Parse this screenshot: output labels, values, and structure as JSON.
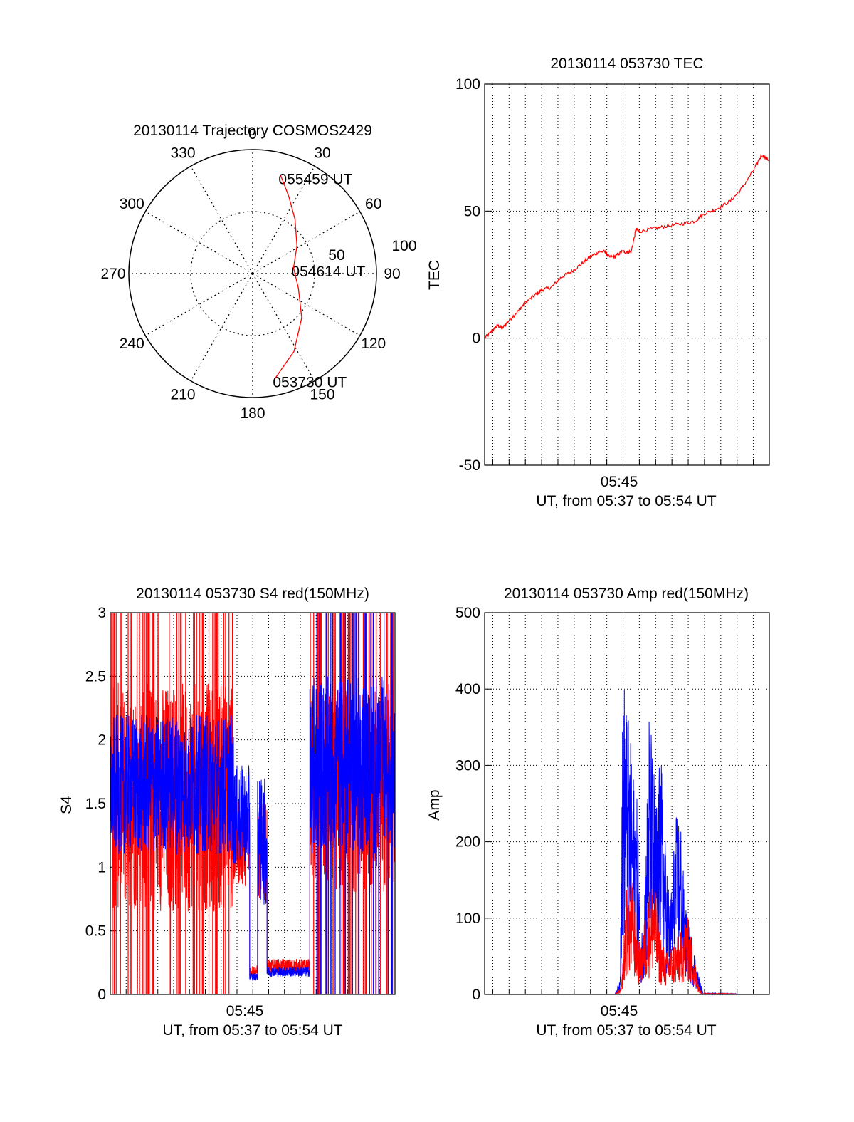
{
  "colors": {
    "red": "#ff0000",
    "blue": "#0000ff",
    "axis": "#000000",
    "grid": "#000000"
  },
  "chart_data": [
    {
      "type": "polar",
      "title": "20130114 Trajectory COSMOS2429",
      "azimuth_ticks": [
        "0",
        "30",
        "60",
        "90",
        "120",
        "150",
        "180",
        "210",
        "240",
        "270",
        "300",
        "330"
      ],
      "radius_labels": [
        "50",
        "100"
      ],
      "trajectory_label_points": [
        {
          "label": "055459 UT",
          "az": 16,
          "el": 16
        },
        {
          "label": "054614 UT",
          "az": 82,
          "el": 60
        },
        {
          "label": "053730 UT",
          "az": 168,
          "el": 12
        }
      ],
      "trajectory": [
        {
          "az": 16,
          "el": 16
        },
        {
          "az": 25,
          "el": 28
        },
        {
          "az": 38,
          "el": 40
        },
        {
          "az": 58,
          "el": 52
        },
        {
          "az": 82,
          "el": 60
        },
        {
          "az": 108,
          "el": 55
        },
        {
          "az": 132,
          "el": 42
        },
        {
          "az": 152,
          "el": 26
        },
        {
          "az": 168,
          "el": 12
        }
      ],
      "series_color": "red"
    },
    {
      "type": "line",
      "title": "20130114 053730 TEC",
      "ylabel": "TEC",
      "xlabel": "UT, from 05:37 to 05:54 UT",
      "x_tick_label": "05:45",
      "ylim": [
        -50,
        100
      ],
      "yticks": [
        -50,
        0,
        50,
        100
      ],
      "xlim_minutes": [
        37.5,
        54.98
      ],
      "grid": true,
      "series": [
        {
          "color": "red",
          "points": [
            [
              37.5,
              0
            ],
            [
              38.0,
              3
            ],
            [
              38.3,
              5
            ],
            [
              38.6,
              4
            ],
            [
              39.0,
              7
            ],
            [
              39.6,
              11
            ],
            [
              40.0,
              14
            ],
            [
              40.6,
              17
            ],
            [
              41.0,
              19
            ],
            [
              41.6,
              20
            ],
            [
              42.2,
              24
            ],
            [
              42.8,
              26
            ],
            [
              43.4,
              29
            ],
            [
              44.0,
              32
            ],
            [
              44.5,
              34
            ],
            [
              44.9,
              34
            ],
            [
              45.1,
              32
            ],
            [
              45.5,
              32
            ],
            [
              45.9,
              34
            ],
            [
              46.2,
              34
            ],
            [
              46.5,
              34
            ],
            [
              46.8,
              43
            ],
            [
              47.0,
              42
            ],
            [
              47.8,
              43
            ],
            [
              48.6,
              44
            ],
            [
              49.6,
              45
            ],
            [
              50.4,
              46
            ],
            [
              51.0,
              49
            ],
            [
              51.8,
              51
            ],
            [
              52.6,
              54
            ],
            [
              53.3,
              59
            ],
            [
              54.0,
              66
            ],
            [
              54.5,
              72
            ],
            [
              54.98,
              70
            ]
          ]
        }
      ]
    },
    {
      "type": "line",
      "title": "20130114 053730 S4 red(150MHz)",
      "ylabel": "S4",
      "xlabel": "UT, from 05:37 to 05:54 UT",
      "x_tick_label": "05:45",
      "ylim": [
        0,
        3
      ],
      "yticks": [
        0,
        0.5,
        1,
        1.5,
        2,
        2.5,
        3
      ],
      "ytick_labels": [
        "0",
        "0.5",
        "1",
        "1.5",
        "2",
        "2.5",
        "3"
      ],
      "xlim_minutes": [
        37.0,
        54.98
      ],
      "grid": true,
      "series": [
        {
          "color": "red",
          "segments": [
            {
              "x0": 37.0,
              "x1": 44.8,
              "mean": 1.55,
              "noise": 0.9,
              "spikes": true
            },
            {
              "x0": 44.8,
              "x1": 45.8,
              "mean": 1.2,
              "noise": 0.35,
              "spikes": false
            },
            {
              "x0": 45.8,
              "x1": 46.3,
              "mean": 0.18,
              "noise": 0.05,
              "spikes": false
            },
            {
              "x0": 46.3,
              "x1": 46.9,
              "mean": 1.1,
              "noise": 0.4,
              "spikes": false
            },
            {
              "x0": 46.9,
              "x1": 49.6,
              "mean": 0.22,
              "noise": 0.06,
              "spikes": false
            },
            {
              "x0": 49.6,
              "x1": 54.98,
              "mean": 1.6,
              "noise": 0.8,
              "spikes": true
            }
          ]
        },
        {
          "color": "blue",
          "segments": [
            {
              "x0": 37.0,
              "x1": 44.8,
              "mean": 1.65,
              "noise": 0.55,
              "spikes": false
            },
            {
              "x0": 44.8,
              "x1": 45.8,
              "mean": 1.4,
              "noise": 0.4,
              "spikes": false
            },
            {
              "x0": 45.8,
              "x1": 46.3,
              "mean": 0.14,
              "noise": 0.03,
              "spikes": false
            },
            {
              "x0": 46.3,
              "x1": 46.9,
              "mean": 1.2,
              "noise": 0.5,
              "spikes": false
            },
            {
              "x0": 46.9,
              "x1": 49.6,
              "mean": 0.18,
              "noise": 0.04,
              "spikes": false
            },
            {
              "x0": 49.6,
              "x1": 54.98,
              "mean": 1.8,
              "noise": 0.7,
              "spikes": true
            }
          ]
        }
      ]
    },
    {
      "type": "line",
      "title": "20130114 053730 Amp red(150MHz)",
      "ylabel": "Amp",
      "xlabel": "UT, from 05:37 to 05:54 UT",
      "x_tick_label": "05:45",
      "ylim": [
        0,
        500
      ],
      "yticks": [
        0,
        100,
        200,
        300,
        400,
        500
      ],
      "xlim_minutes": [
        37.5,
        54.98
      ],
      "grid": true,
      "series": [
        {
          "color": "red",
          "envelope": [
            [
              37.5,
              0
            ],
            [
              45.5,
              0
            ],
            [
              45.9,
              10
            ],
            [
              46.2,
              140
            ],
            [
              46.6,
              150
            ],
            [
              46.9,
              80
            ],
            [
              47.1,
              60
            ],
            [
              47.5,
              130
            ],
            [
              47.9,
              160
            ],
            [
              48.2,
              90
            ],
            [
              48.6,
              55
            ],
            [
              49.1,
              70
            ],
            [
              49.5,
              80
            ],
            [
              49.9,
              110
            ],
            [
              50.3,
              60
            ],
            [
              50.6,
              20
            ],
            [
              50.8,
              2
            ],
            [
              54.98,
              0
            ]
          ]
        },
        {
          "color": "blue",
          "envelope": [
            [
              37.5,
              0
            ],
            [
              45.5,
              0
            ],
            [
              45.8,
              20
            ],
            [
              46.0,
              430
            ],
            [
              46.3,
              370
            ],
            [
              46.6,
              300
            ],
            [
              46.9,
              250
            ],
            [
              47.1,
              60
            ],
            [
              47.4,
              200
            ],
            [
              47.6,
              380
            ],
            [
              47.9,
              300
            ],
            [
              48.1,
              250
            ],
            [
              48.3,
              330
            ],
            [
              48.6,
              200
            ],
            [
              48.9,
              120
            ],
            [
              49.2,
              230
            ],
            [
              49.5,
              250
            ],
            [
              49.8,
              120
            ],
            [
              50.2,
              80
            ],
            [
              50.6,
              30
            ],
            [
              50.9,
              2
            ],
            [
              54.98,
              0
            ]
          ]
        }
      ]
    }
  ]
}
